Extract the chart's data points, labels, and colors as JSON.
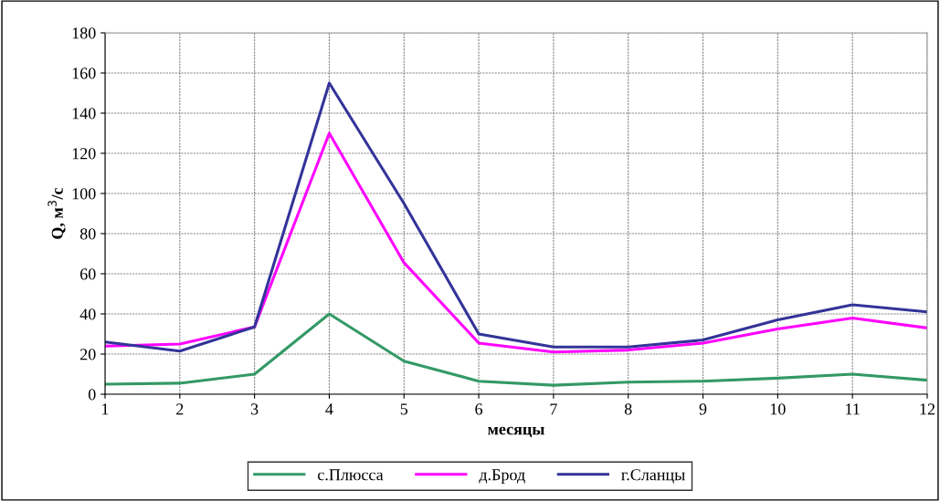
{
  "chart_data": {
    "type": "line",
    "xlabel": "месяцы",
    "ylabel": "Q, м$^{3}$/с",
    "x": [
      1,
      2,
      3,
      4,
      5,
      6,
      7,
      8,
      9,
      10,
      11,
      12
    ],
    "series": [
      {
        "name": "с.Плюсса",
        "color": "#339966",
        "values": [
          5,
          5.5,
          10,
          40,
          16.5,
          6.5,
          4.5,
          6,
          6.5,
          8,
          10,
          7
        ]
      },
      {
        "name": "д.Брод",
        "color": "#ff00ff",
        "values": [
          24,
          25,
          33.5,
          130,
          65.5,
          25.5,
          21,
          22,
          25.5,
          32.5,
          38,
          33
        ]
      },
      {
        "name": "г.Сланцы",
        "color": "#333399",
        "values": [
          26,
          21.5,
          33.5,
          155,
          95,
          30,
          23.5,
          23.5,
          27,
          37,
          44.5,
          41
        ]
      }
    ],
    "xlim": [
      1,
      12
    ],
    "xticks": [
      1,
      2,
      3,
      4,
      5,
      6,
      7,
      8,
      9,
      10,
      11,
      12
    ],
    "ylim": [
      0,
      180
    ],
    "yticks": [
      0,
      20,
      40,
      60,
      80,
      100,
      120,
      140,
      160,
      180
    ],
    "grid": true,
    "legend": "bottom",
    "marker": "none",
    "line_style": "solid"
  }
}
